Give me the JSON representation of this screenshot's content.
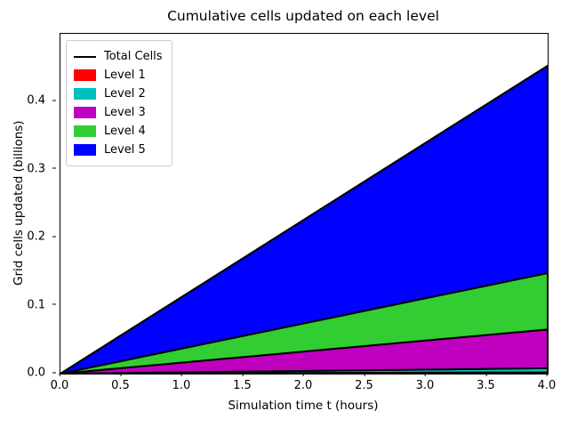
{
  "chart_data": {
    "type": "area",
    "stacked": true,
    "title": "Cumulative cells updated on each level",
    "xlabel": "Simulation time t (hours)",
    "ylabel": "Grid cells updated (billions)",
    "xlim": [
      0,
      4
    ],
    "ylim": [
      0,
      0.5
    ],
    "grid": false,
    "legend_position": "upper left",
    "edge_color": "#000000",
    "edge_width": 2,
    "x": [
      0,
      4
    ],
    "series": [
      {
        "name": "Level 1",
        "color": "#ff0000",
        "values": [
          0,
          0.002
        ]
      },
      {
        "name": "Level 2",
        "color": "#00bfbf",
        "values": [
          0,
          0.006
        ]
      },
      {
        "name": "Level 3",
        "color": "#bf00bf",
        "values": [
          0,
          0.057
        ]
      },
      {
        "name": "Level 4",
        "color": "#32cd32",
        "values": [
          0,
          0.083
        ]
      },
      {
        "name": "Level 5",
        "color": "#0000ff",
        "values": [
          0,
          0.305
        ]
      }
    ],
    "total_line": {
      "name": "Total Cells",
      "color": "#000000",
      "values": [
        0,
        0.453
      ]
    },
    "cumulative_tops_at_t4": [
      0.002,
      0.008,
      0.065,
      0.148,
      0.453
    ],
    "xtick_labels": [
      "0.0",
      "0.5",
      "1.0",
      "1.5",
      "2.0",
      "2.5",
      "3.0",
      "3.5",
      "4.0"
    ],
    "ytick_labels": [
      "0.0",
      "0.1",
      "0.2",
      "0.3",
      "0.4"
    ]
  }
}
